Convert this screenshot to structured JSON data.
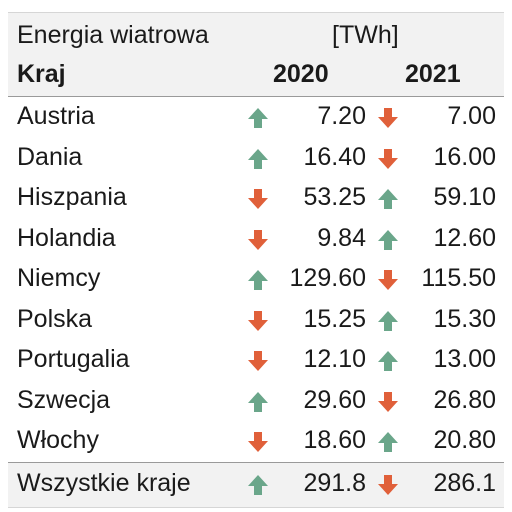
{
  "table": {
    "title": "Energia wiatrowa",
    "unit": "[TWh]",
    "headers": {
      "country": "Kraj",
      "year_a": "2020",
      "year_b": "2021"
    },
    "rows": [
      {
        "country": "Austria",
        "v2020": "7.20",
        "dir2020": "up",
        "v2021": "7.00",
        "dir2021": "down"
      },
      {
        "country": "Dania",
        "v2020": "16.40",
        "dir2020": "up",
        "v2021": "16.00",
        "dir2021": "down"
      },
      {
        "country": "Hiszpania",
        "v2020": "53.25",
        "dir2020": "down",
        "v2021": "59.10",
        "dir2021": "up"
      },
      {
        "country": "Holandia",
        "v2020": "9.84",
        "dir2020": "down",
        "v2021": "12.60",
        "dir2021": "up"
      },
      {
        "country": "Niemcy",
        "v2020": "129.60",
        "dir2020": "up",
        "v2021": "115.50",
        "dir2021": "down"
      },
      {
        "country": "Polska",
        "v2020": "15.25",
        "dir2020": "down",
        "v2021": "15.30",
        "dir2021": "up"
      },
      {
        "country": "Portugalia",
        "v2020": "12.10",
        "dir2020": "down",
        "v2021": "13.00",
        "dir2021": "up"
      },
      {
        "country": "Szwecja",
        "v2020": "29.60",
        "dir2020": "up",
        "v2021": "26.80",
        "dir2021": "down"
      },
      {
        "country": "Włochy",
        "v2020": "18.60",
        "dir2020": "down",
        "v2021": "20.80",
        "dir2021": "up"
      },
      {
        "country": "Wszystkie kraje",
        "v2020": "291.8",
        "dir2020": "up",
        "v2021": "286.1",
        "dir2021": "down"
      }
    ]
  },
  "colors": {
    "up_arrow": "#6aa68a",
    "down_arrow": "#e0603a"
  },
  "icons": {
    "up": "arrow-up-icon",
    "down": "arrow-down-icon"
  }
}
